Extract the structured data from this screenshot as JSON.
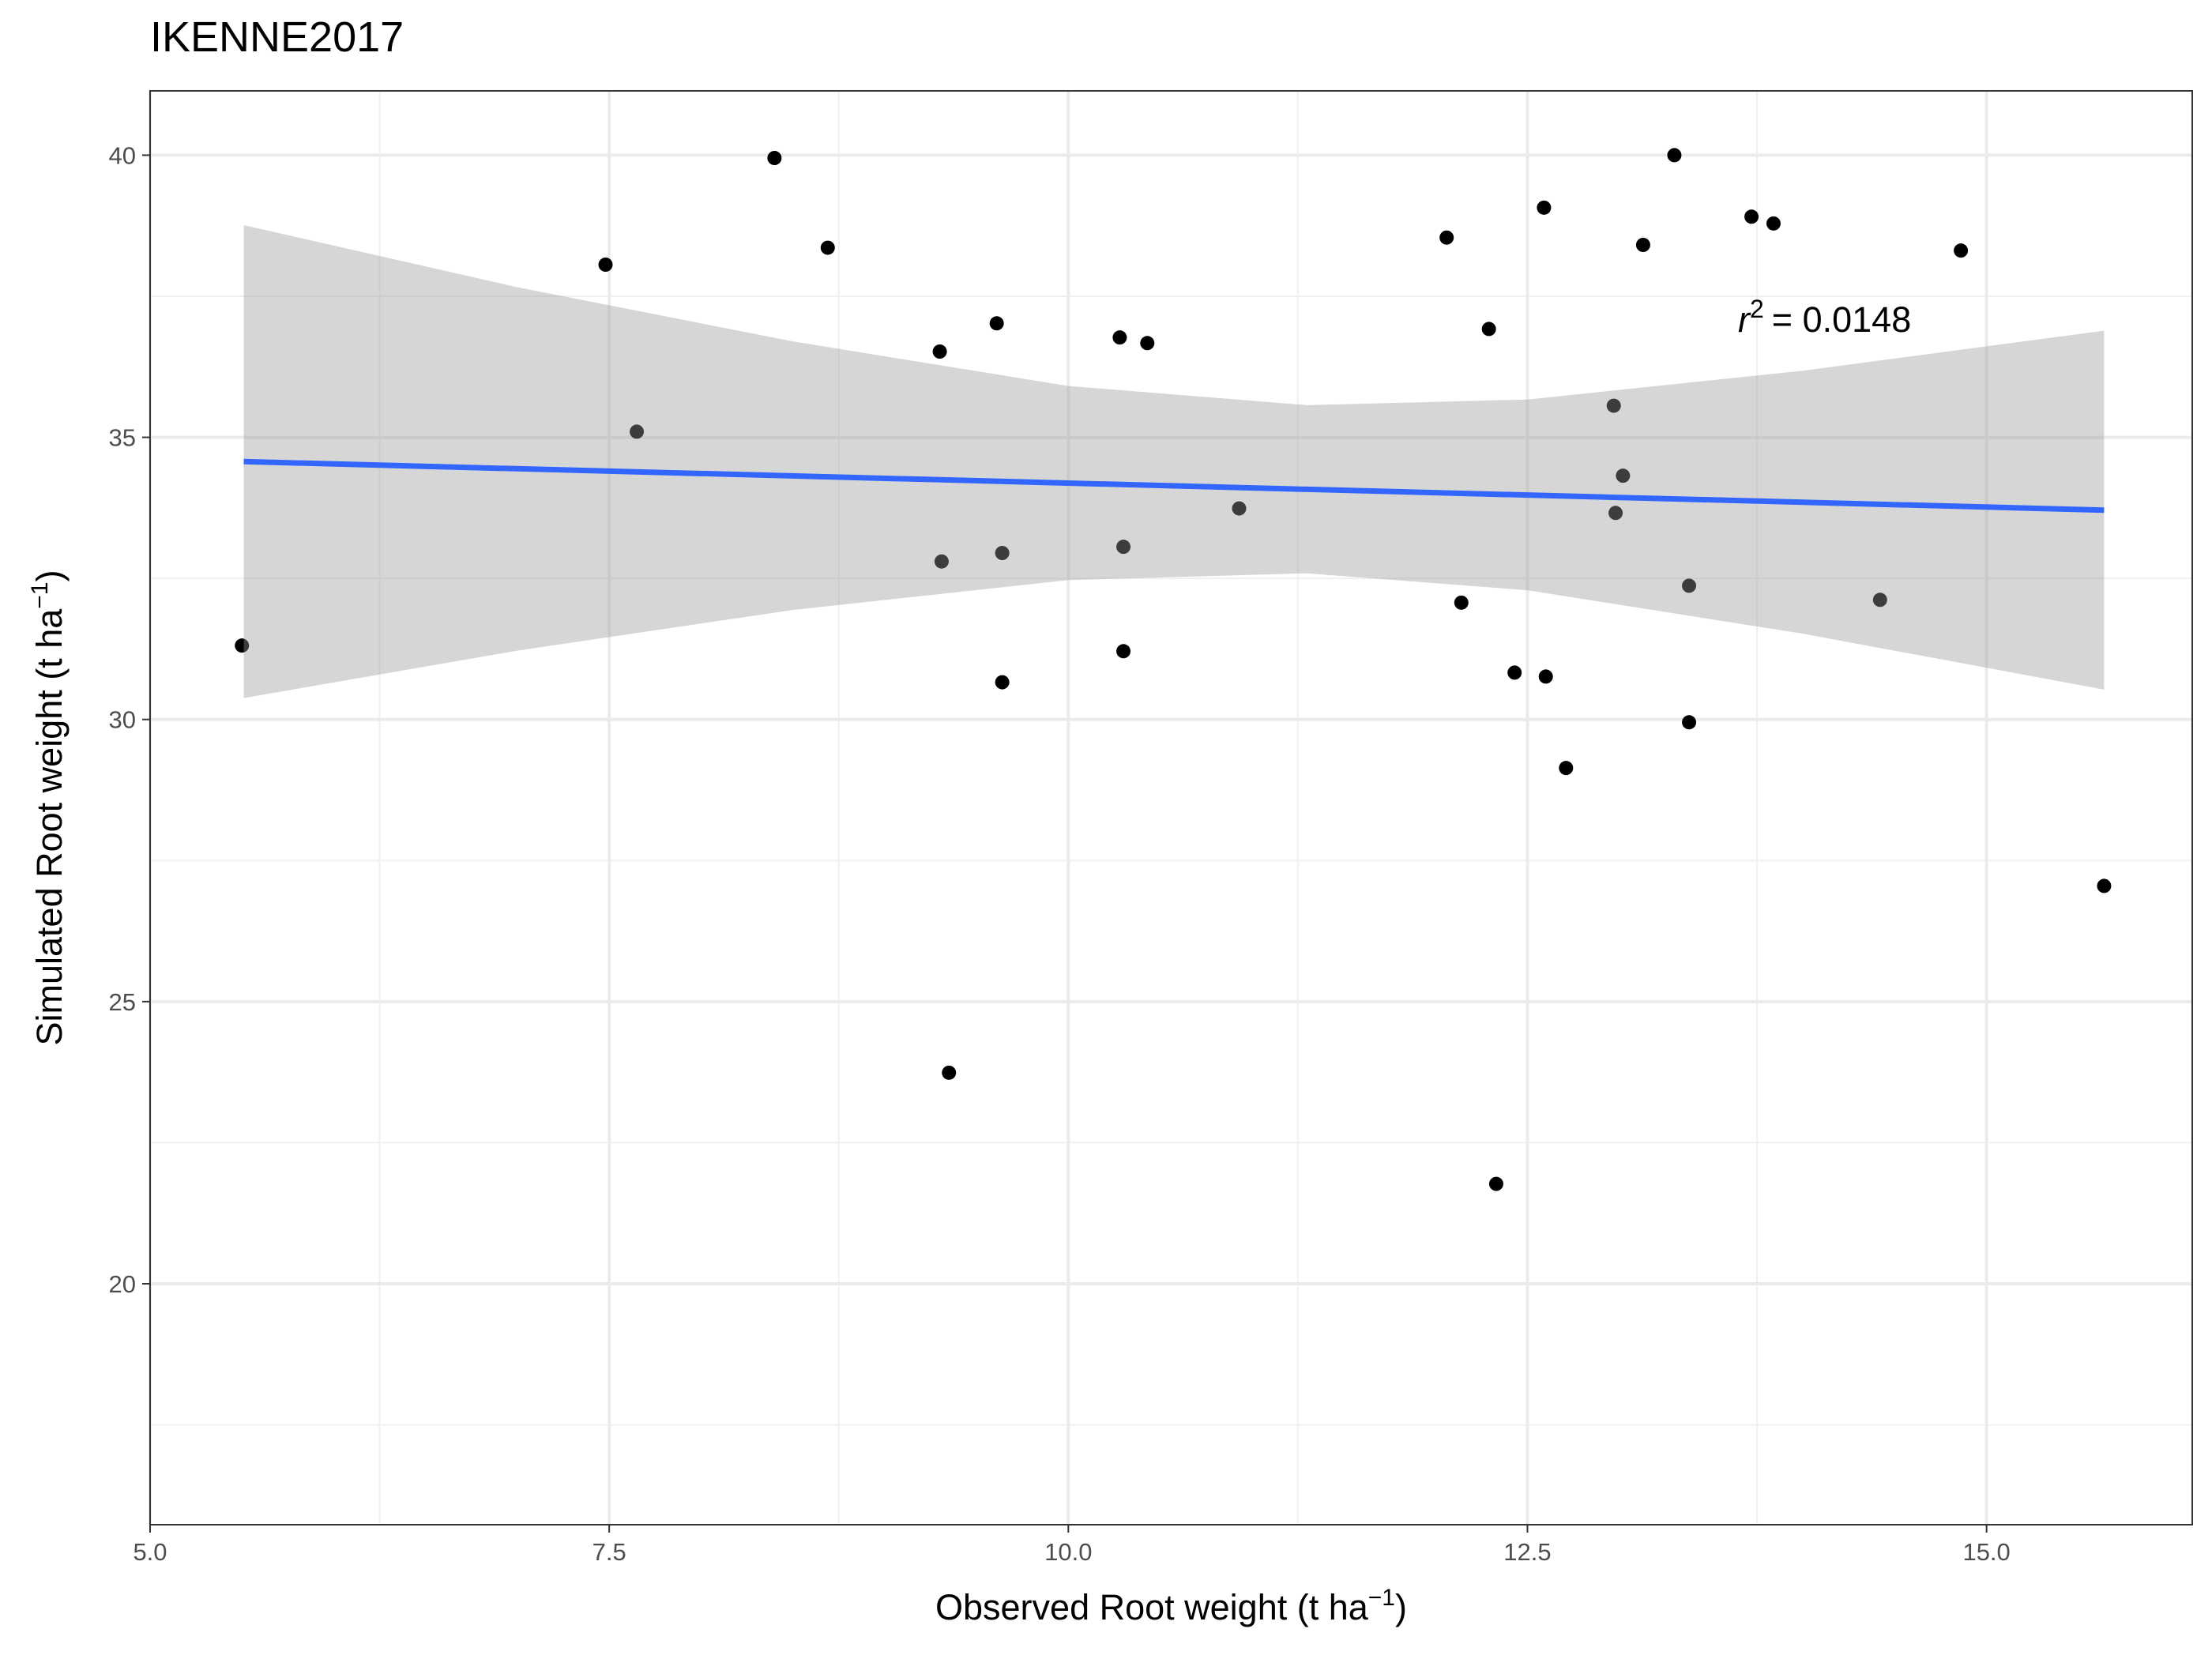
{
  "chart_data": {
    "type": "scatter",
    "title": "IKENNE2017",
    "x_label": {
      "text": "Observed Root weight (t ha",
      "exponent": "−1",
      "close": ")"
    },
    "y_label": {
      "text": "Simulated Root weight (t ha",
      "exponent": "−1",
      "close": ")"
    },
    "annotation": {
      "variable": "r",
      "exponent": "2",
      "text": "= 0.0148"
    },
    "xlim": [
      5.0,
      16.12
    ],
    "ylim": [
      15.73,
      41.14
    ],
    "xticks": [
      {
        "value": 5,
        "label": "5.0"
      },
      7.5,
      {
        "value": 10,
        "label": "10.0"
      },
      12.5,
      {
        "value": 15,
        "label": "15.0"
      }
    ],
    "yticks": [
      20,
      25,
      30,
      35,
      40
    ],
    "xminor": [
      6.25,
      8.75,
      11.25,
      13.75
    ],
    "yminor": [
      17.5,
      22.5,
      27.5,
      32.5,
      37.5
    ],
    "grid": true,
    "series": [
      {
        "color": "#000000",
        "x": [
          5.5,
          7.48,
          7.65,
          8.4,
          8.69,
          9.3,
          9.31,
          9.35,
          9.61,
          9.64,
          9.64,
          10.28,
          10.3,
          10.3,
          10.43,
          10.93,
          12.06,
          12.14,
          12.29,
          12.33,
          12.43,
          12.59,
          12.6,
          12.71,
          12.97,
          12.98,
          13.02,
          13.13,
          13.3,
          13.38,
          13.38,
          13.72,
          13.84,
          14.42,
          14.86,
          15.64
        ],
        "values": [
          31.31,
          38.06,
          35.1,
          39.95,
          38.36,
          36.52,
          32.8,
          23.74,
          37.02,
          32.95,
          30.66,
          36.77,
          33.06,
          31.21,
          36.67,
          33.74,
          38.54,
          32.07,
          36.92,
          21.77,
          30.83,
          39.07,
          30.76,
          29.14,
          35.56,
          33.66,
          34.32,
          38.41,
          40.0,
          32.37,
          29.95,
          38.91,
          38.79,
          32.12,
          38.31,
          27.05
        ]
      }
    ],
    "fit": {
      "color": "#3366ff",
      "x": [
        5.51,
        15.64
      ],
      "y": [
        34.57,
        33.71
      ]
    },
    "band": {
      "color": "#999999",
      "x": [
        5.51,
        7.0,
        8.5,
        10.0,
        11.3,
        12.5,
        14.0,
        15.64
      ],
      "upper": [
        38.76,
        37.66,
        36.7,
        35.91,
        35.57,
        35.67,
        36.18,
        36.89
      ],
      "lower": [
        30.38,
        31.22,
        31.94,
        32.47,
        32.59,
        32.29,
        31.52,
        30.53
      ]
    }
  }
}
